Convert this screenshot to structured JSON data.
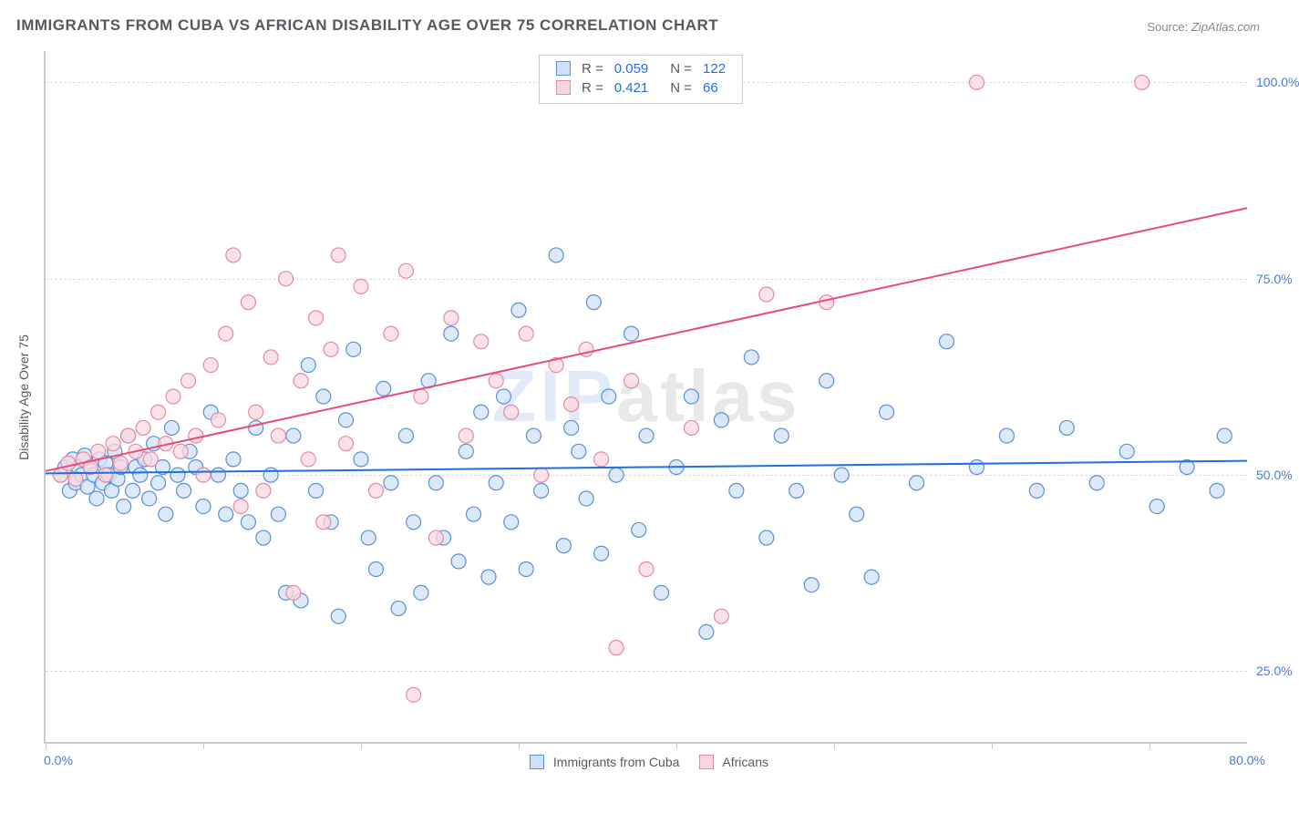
{
  "title": "IMMIGRANTS FROM CUBA VS AFRICAN DISABILITY AGE OVER 75 CORRELATION CHART",
  "source_label": "Source:",
  "source_value": "ZipAtlas.com",
  "yaxis_title": "Disability Age Over 75",
  "watermark_a": "ZIP",
  "watermark_b": "atlas",
  "chart": {
    "type": "scatter",
    "xlim": [
      0,
      80
    ],
    "ylim": [
      16,
      104
    ],
    "xtick_positions": [
      0,
      10.5,
      21,
      31.5,
      42,
      52.5,
      63,
      73.5
    ],
    "yticks": [
      25,
      50,
      75,
      100
    ],
    "ytick_labels": [
      "25.0%",
      "50.0%",
      "75.0%",
      "100.0%"
    ],
    "xlabel_min": "0.0%",
    "xlabel_max": "80.0%",
    "background_color": "#ffffff",
    "grid_color": "#d9dce0",
    "axis_color": "#c7cbd1",
    "marker_radius": 8,
    "marker_stroke_width": 1.2,
    "line_width": 2,
    "series": [
      {
        "name": "Immigrants from Cuba",
        "fill": "#cfe1f7",
        "stroke": "#5b8fd6",
        "line_color": "#1f6fe5",
        "r": 0.059,
        "n": 122,
        "regression": {
          "x1": 0,
          "y1": 50.2,
          "x2": 80,
          "y2": 51.8
        },
        "points": [
          [
            1,
            50
          ],
          [
            1.3,
            51
          ],
          [
            1.6,
            48
          ],
          [
            1.8,
            52
          ],
          [
            2,
            49
          ],
          [
            2.2,
            51
          ],
          [
            2.4,
            50
          ],
          [
            2.6,
            52.5
          ],
          [
            2.8,
            48.5
          ],
          [
            3,
            51
          ],
          [
            3.2,
            50
          ],
          [
            3.4,
            47
          ],
          [
            3.6,
            52
          ],
          [
            3.8,
            49
          ],
          [
            4,
            51.5
          ],
          [
            4.2,
            50
          ],
          [
            4.4,
            48
          ],
          [
            4.6,
            53
          ],
          [
            4.8,
            49.5
          ],
          [
            5,
            51
          ],
          [
            5.2,
            46
          ],
          [
            5.5,
            55
          ],
          [
            5.8,
            48
          ],
          [
            6,
            51
          ],
          [
            6.3,
            50
          ],
          [
            6.6,
            52
          ],
          [
            6.9,
            47
          ],
          [
            7.2,
            54
          ],
          [
            7.5,
            49
          ],
          [
            7.8,
            51
          ],
          [
            8,
            45
          ],
          [
            8.4,
            56
          ],
          [
            8.8,
            50
          ],
          [
            9.2,
            48
          ],
          [
            9.6,
            53
          ],
          [
            10,
            51
          ],
          [
            10.5,
            46
          ],
          [
            11,
            58
          ],
          [
            11.5,
            50
          ],
          [
            12,
            45
          ],
          [
            12.5,
            52
          ],
          [
            13,
            48
          ],
          [
            13.5,
            44
          ],
          [
            14,
            56
          ],
          [
            14.5,
            42
          ],
          [
            15,
            50
          ],
          [
            15.5,
            45
          ],
          [
            16,
            35
          ],
          [
            16.5,
            55
          ],
          [
            17,
            34
          ],
          [
            17.5,
            64
          ],
          [
            18,
            48
          ],
          [
            18.5,
            60
          ],
          [
            19,
            44
          ],
          [
            19.5,
            32
          ],
          [
            20,
            57
          ],
          [
            20.5,
            66
          ],
          [
            21,
            52
          ],
          [
            21.5,
            42
          ],
          [
            22,
            38
          ],
          [
            22.5,
            61
          ],
          [
            23,
            49
          ],
          [
            23.5,
            33
          ],
          [
            24,
            55
          ],
          [
            24.5,
            44
          ],
          [
            25,
            35
          ],
          [
            25.5,
            62
          ],
          [
            26,
            49
          ],
          [
            26.5,
            42
          ],
          [
            27,
            68
          ],
          [
            27.5,
            39
          ],
          [
            28,
            53
          ],
          [
            28.5,
            45
          ],
          [
            29,
            58
          ],
          [
            29.5,
            37
          ],
          [
            30,
            49
          ],
          [
            30.5,
            60
          ],
          [
            31,
            44
          ],
          [
            31.5,
            71
          ],
          [
            32,
            38
          ],
          [
            32.5,
            55
          ],
          [
            33,
            48
          ],
          [
            34,
            78
          ],
          [
            34.5,
            41
          ],
          [
            35,
            56
          ],
          [
            35.5,
            53
          ],
          [
            36,
            47
          ],
          [
            36.5,
            72
          ],
          [
            37,
            40
          ],
          [
            37.5,
            60
          ],
          [
            38,
            50
          ],
          [
            39,
            68
          ],
          [
            39.5,
            43
          ],
          [
            40,
            55
          ],
          [
            41,
            35
          ],
          [
            42,
            51
          ],
          [
            43,
            60
          ],
          [
            44,
            30
          ],
          [
            45,
            57
          ],
          [
            46,
            48
          ],
          [
            47,
            65
          ],
          [
            48,
            42
          ],
          [
            49,
            55
          ],
          [
            50,
            48
          ],
          [
            51,
            36
          ],
          [
            52,
            62
          ],
          [
            53,
            50
          ],
          [
            54,
            45
          ],
          [
            55,
            37
          ],
          [
            56,
            58
          ],
          [
            58,
            49
          ],
          [
            60,
            67
          ],
          [
            62,
            51
          ],
          [
            64,
            55
          ],
          [
            66,
            48
          ],
          [
            68,
            56
          ],
          [
            70,
            49
          ],
          [
            72,
            53
          ],
          [
            74,
            46
          ],
          [
            76,
            51
          ],
          [
            78,
            48
          ],
          [
            78.5,
            55
          ]
        ]
      },
      {
        "name": "Africans",
        "fill": "#f9d7e0",
        "stroke": "#e58aa4",
        "line_color": "#e84a7a",
        "r": 0.421,
        "n": 66,
        "regression": {
          "x1": 0,
          "y1": 50.5,
          "x2": 80,
          "y2": 84
        },
        "points": [
          [
            1,
            50
          ],
          [
            1.5,
            51.5
          ],
          [
            2,
            49.5
          ],
          [
            2.5,
            52
          ],
          [
            3,
            51
          ],
          [
            3.5,
            53
          ],
          [
            4,
            50
          ],
          [
            4.5,
            54
          ],
          [
            5,
            51.5
          ],
          [
            5.5,
            55
          ],
          [
            6,
            53
          ],
          [
            6.5,
            56
          ],
          [
            7,
            52
          ],
          [
            7.5,
            58
          ],
          [
            8,
            54
          ],
          [
            8.5,
            60
          ],
          [
            9,
            53
          ],
          [
            9.5,
            62
          ],
          [
            10,
            55
          ],
          [
            10.5,
            50
          ],
          [
            11,
            64
          ],
          [
            11.5,
            57
          ],
          [
            12,
            68
          ],
          [
            12.5,
            78
          ],
          [
            13,
            46
          ],
          [
            13.5,
            72
          ],
          [
            14,
            58
          ],
          [
            14.5,
            48
          ],
          [
            15,
            65
          ],
          [
            15.5,
            55
          ],
          [
            16,
            75
          ],
          [
            16.5,
            35
          ],
          [
            17,
            62
          ],
          [
            17.5,
            52
          ],
          [
            18,
            70
          ],
          [
            18.5,
            44
          ],
          [
            19,
            66
          ],
          [
            19.5,
            78
          ],
          [
            20,
            54
          ],
          [
            21,
            74
          ],
          [
            22,
            48
          ],
          [
            23,
            68
          ],
          [
            24,
            76
          ],
          [
            24.5,
            22
          ],
          [
            25,
            60
          ],
          [
            26,
            42
          ],
          [
            27,
            70
          ],
          [
            28,
            55
          ],
          [
            29,
            67
          ],
          [
            30,
            62
          ],
          [
            31,
            58
          ],
          [
            32,
            68
          ],
          [
            33,
            50
          ],
          [
            34,
            64
          ],
          [
            35,
            59
          ],
          [
            36,
            66
          ],
          [
            37,
            52
          ],
          [
            38,
            28
          ],
          [
            39,
            62
          ],
          [
            40,
            38
          ],
          [
            43,
            56
          ],
          [
            45,
            32
          ],
          [
            48,
            73
          ],
          [
            52,
            72
          ],
          [
            62,
            100
          ],
          [
            73,
            100
          ]
        ]
      }
    ]
  },
  "legend": {
    "series1_label": "Immigrants from Cuba",
    "series2_label": "Africans"
  },
  "stats_box": {
    "r_label": "R =",
    "n_label": "N ="
  }
}
